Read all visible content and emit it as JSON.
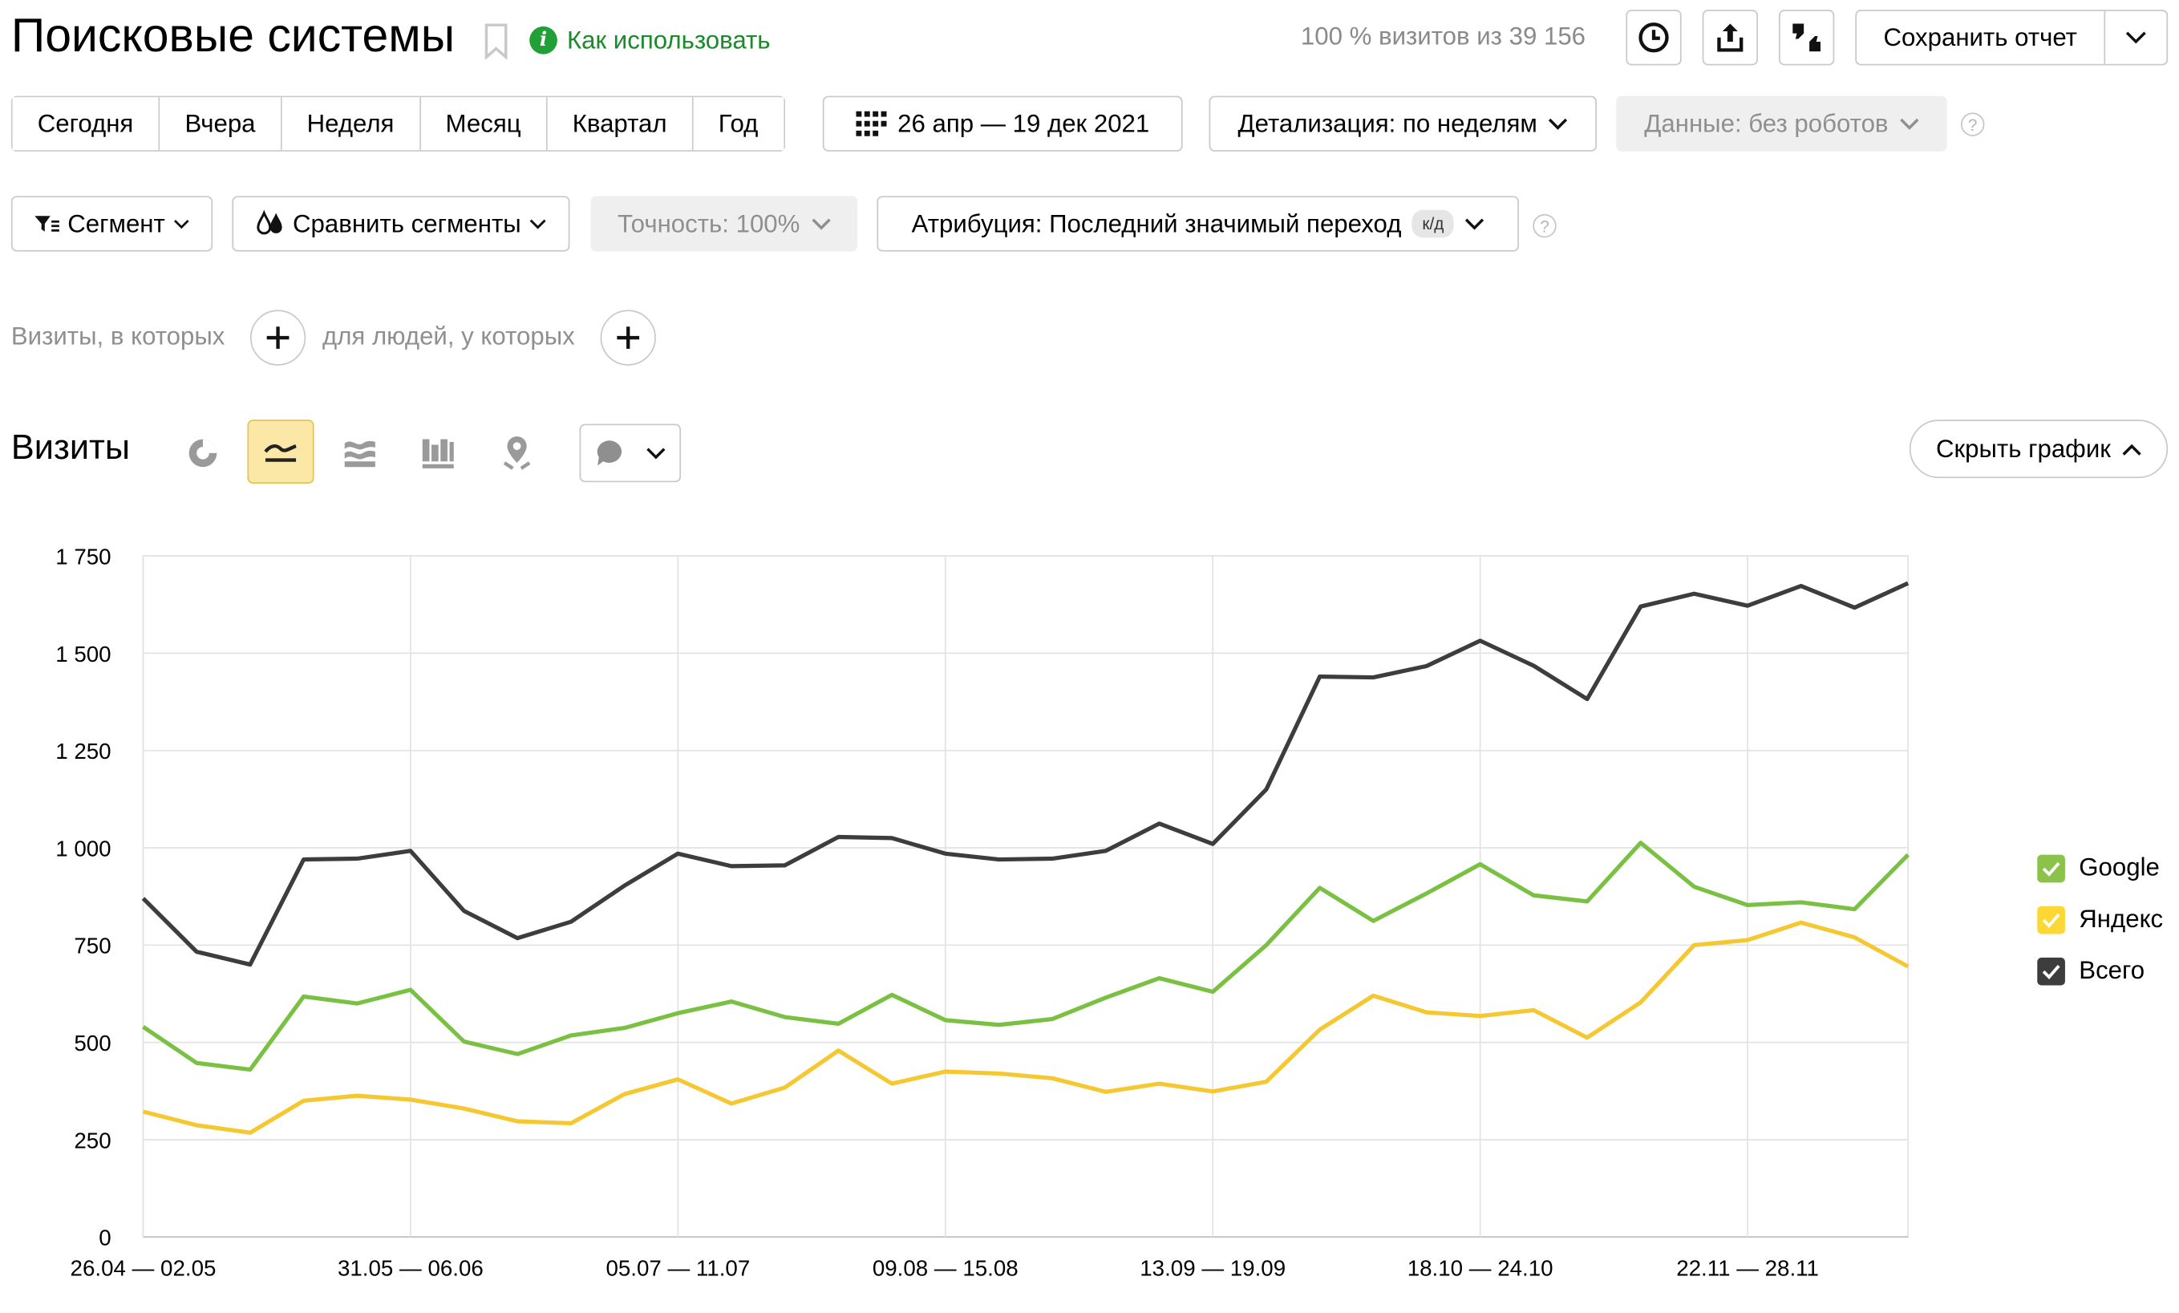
{
  "header": {
    "title": "Поисковые системы",
    "help_link": "Как использовать",
    "visits_share": "100 % визитов из 39 156",
    "save_label": "Сохранить отчет"
  },
  "periods": [
    "Сегодня",
    "Вчера",
    "Неделя",
    "Месяц",
    "Квартал",
    "Год"
  ],
  "date_range": "26 апр — 19 дек 2021",
  "detail": "Детализация: по неделям",
  "data_filter": "Данные: без роботов",
  "segment_label": "Сегмент",
  "compare_label": "Сравнить сегменты",
  "accuracy": "Точность: 100%",
  "attribution": "Атрибуция: Последний значимый переход",
  "attribution_badge": "к/д",
  "conditions": {
    "visits": "Визиты, в которых",
    "people": "для людей, у которых"
  },
  "section_title": "Визиты",
  "hide_chart": "Скрыть график",
  "legend": [
    {
      "name": "Google",
      "color": "#8bc34a"
    },
    {
      "name": "Яндекс",
      "color": "#fdd835"
    },
    {
      "name": "Всего",
      "color": "#3d3d3d"
    }
  ],
  "colors": {
    "google": "#7ac143",
    "yandex": "#f5c832",
    "total": "#3d3d3d",
    "help_green": "#1a8a2a",
    "active_view": "#fbe8a6"
  },
  "chart_data": {
    "type": "line",
    "ylim": [
      0,
      1750
    ],
    "yticks": [
      0,
      250,
      500,
      750,
      1000,
      1250,
      1500,
      1750
    ],
    "ytick_labels": [
      "0",
      "250",
      "500",
      "750",
      "1 000",
      "1 250",
      "1 500",
      "1 750"
    ],
    "xtick_labels": [
      {
        "index": 0,
        "label": "26.04 — 02.05"
      },
      {
        "index": 5,
        "label": "31.05 — 06.06"
      },
      {
        "index": 10,
        "label": "05.07 — 11.07"
      },
      {
        "index": 15,
        "label": "09.08 — 15.08"
      },
      {
        "index": 20,
        "label": "13.09 — 19.09"
      },
      {
        "index": 25,
        "label": "18.10 — 24.10"
      },
      {
        "index": 30,
        "label": "22.11 — 28.11"
      }
    ],
    "num_points": 34,
    "grid": true,
    "legend_position": "right",
    "series": [
      {
        "name": "Всего",
        "color": "#3d3d3d",
        "values": [
          870,
          733,
          700,
          970,
          972,
          992,
          838,
          768,
          810,
          903,
          985,
          953,
          955,
          1028,
          1025,
          985,
          970,
          972,
          992,
          1062,
          1010,
          1150,
          1440,
          1438,
          1467,
          1532,
          1468,
          1382,
          1620,
          1653,
          1622,
          1673,
          1617,
          1680
        ]
      },
      {
        "name": "Google",
        "color": "#7ac143",
        "values": [
          540,
          447,
          430,
          618,
          600,
          635,
          502,
          470,
          518,
          537,
          575,
          605,
          565,
          548,
          622,
          557,
          545,
          560,
          615,
          665,
          630,
          750,
          897,
          812,
          883,
          958,
          878,
          862,
          1013,
          900,
          853,
          860,
          842,
          982
        ]
      },
      {
        "name": "Яндекс",
        "color": "#f5c832",
        "values": [
          322,
          287,
          268,
          350,
          363,
          353,
          330,
          297,
          292,
          367,
          405,
          343,
          384,
          479,
          394,
          425,
          420,
          408,
          373,
          394,
          374,
          399,
          533,
          620,
          577,
          568,
          583,
          512,
          603,
          750,
          763,
          808,
          770,
          695
        ]
      }
    ]
  }
}
